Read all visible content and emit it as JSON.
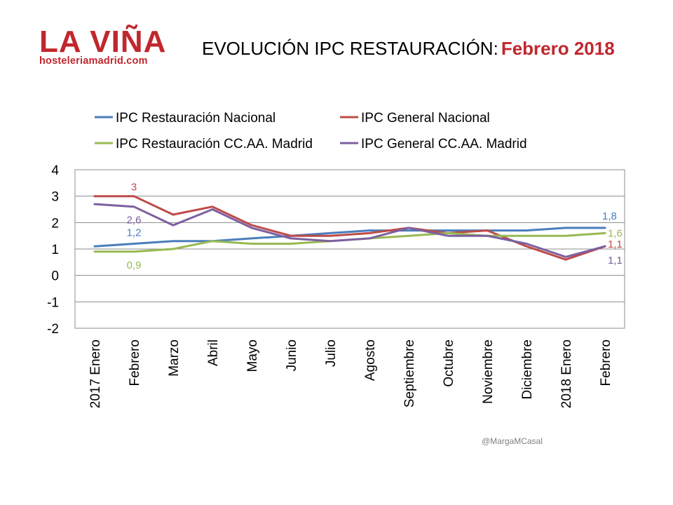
{
  "logo": {
    "main": "LA VIÑA",
    "sub": "hosteleriamadrid.com"
  },
  "title": {
    "main": "EVOLUCIÓN IPC RESTAURACIÓN:",
    "highlight": "Febrero 2018"
  },
  "credit": "@MargaMCasal",
  "colors": {
    "restauracion_nacional": "#4a7ebb",
    "general_nacional": "#be4b48",
    "restauracion_madrid": "#98b954",
    "general_madrid": "#7d60a0",
    "brand": "#c0272d"
  },
  "chart_data": {
    "type": "line",
    "categories": [
      "2017 Enero",
      "Febrero",
      "Marzo",
      "Abril",
      "Mayo",
      "Junio",
      "Julio",
      "Agosto",
      "Septiembre",
      "Octubre",
      "Noviembre",
      "Diciembre",
      "2018 Enero",
      "Febrero"
    ],
    "ylim": [
      -2,
      4
    ],
    "yticks": [
      "4",
      "3",
      "2",
      "1",
      "0",
      "-1",
      "-2"
    ],
    "grid": true,
    "legend_position": "top",
    "series": [
      {
        "name": "IPC Restauración Nacional",
        "color": "#4a7ebb",
        "values": [
          1.1,
          1.2,
          1.3,
          1.3,
          1.4,
          1.5,
          1.6,
          1.7,
          1.7,
          1.7,
          1.7,
          1.7,
          1.8,
          1.8
        ]
      },
      {
        "name": "IPC General Nacional",
        "color": "#be4b48",
        "values": [
          3.0,
          3.0,
          2.3,
          2.6,
          1.9,
          1.5,
          1.5,
          1.6,
          1.8,
          1.6,
          1.7,
          1.1,
          0.6,
          1.1
        ]
      },
      {
        "name": "IPC Restauración CC.AA. Madrid",
        "color": "#98b954",
        "values": [
          0.9,
          0.9,
          1.0,
          1.3,
          1.2,
          1.2,
          1.3,
          1.4,
          1.5,
          1.6,
          1.5,
          1.5,
          1.5,
          1.6
        ]
      },
      {
        "name": "IPC General CC.AA. Madrid",
        "color": "#7d60a0",
        "values": [
          2.7,
          2.6,
          1.9,
          2.5,
          1.8,
          1.4,
          1.3,
          1.4,
          1.8,
          1.5,
          1.5,
          1.2,
          0.7,
          1.1
        ]
      }
    ],
    "data_labels": [
      {
        "text": "3",
        "series": 1,
        "index": 1,
        "pos": "above"
      },
      {
        "text": "2,6",
        "series": 3,
        "index": 1,
        "pos": "below"
      },
      {
        "text": "1,2",
        "series": 0,
        "index": 1,
        "pos": "above-right"
      },
      {
        "text": "0,9",
        "series": 2,
        "index": 1,
        "pos": "below"
      },
      {
        "text": "1,8",
        "series": 0,
        "index": 13,
        "pos": "above-right"
      },
      {
        "text": "1,6",
        "series": 2,
        "index": 13,
        "pos": "right"
      },
      {
        "text": "1,1",
        "series": 1,
        "index": 13,
        "pos": "upper-right"
      },
      {
        "text": "1,1",
        "series": 3,
        "index": 13,
        "pos": "lower-right"
      }
    ]
  }
}
